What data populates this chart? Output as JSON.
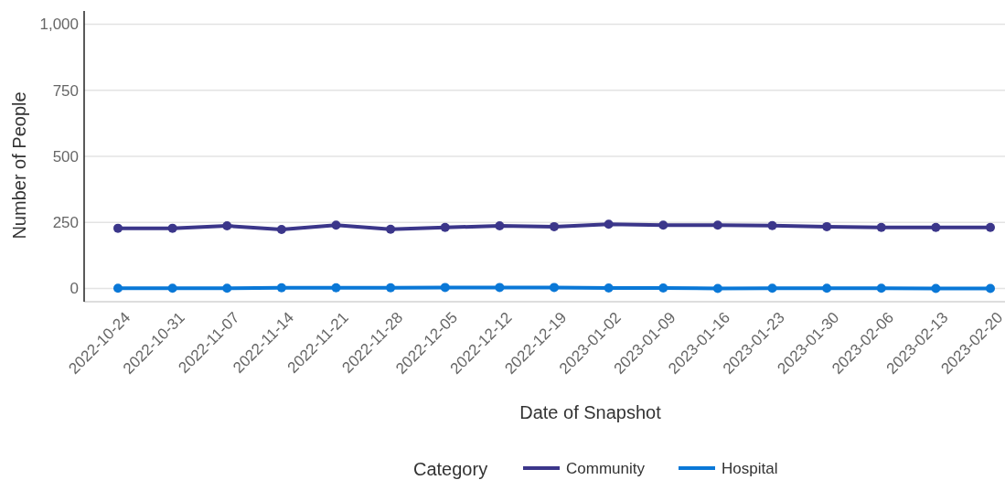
{
  "chart_data": {
    "type": "line",
    "xlabel": "Date of Snapshot",
    "ylabel": "Number of People",
    "legend_title": "Category",
    "legend": "bottom",
    "grid": "y",
    "marker": "circle",
    "line_style": "solid",
    "categories": [
      "2022-10-24",
      "2022-10-31",
      "2022-11-07",
      "2022-11-14",
      "2022-11-21",
      "2022-11-28",
      "2022-12-05",
      "2022-12-12",
      "2022-12-19",
      "2023-01-02",
      "2023-01-09",
      "2023-01-16",
      "2023-01-23",
      "2023-01-30",
      "2023-02-06",
      "2023-02-13",
      "2023-02-20"
    ],
    "ylim": [
      -50,
      1050
    ],
    "yticks": [
      0,
      250,
      500,
      750,
      {
        "value": 1000,
        "label": "1,000"
      }
    ],
    "series": [
      {
        "name": "Community",
        "color": "#3b368a",
        "values": [
          228,
          228,
          237,
          223,
          240,
          224,
          231,
          237,
          234,
          243,
          240,
          240,
          238,
          234,
          231,
          231,
          231
        ]
      },
      {
        "name": "Hospital",
        "color": "#0a78d7",
        "values": [
          1,
          1,
          1,
          3,
          3,
          3,
          4,
          4,
          4,
          2,
          2,
          0,
          1,
          1,
          1,
          0,
          0
        ]
      }
    ]
  }
}
